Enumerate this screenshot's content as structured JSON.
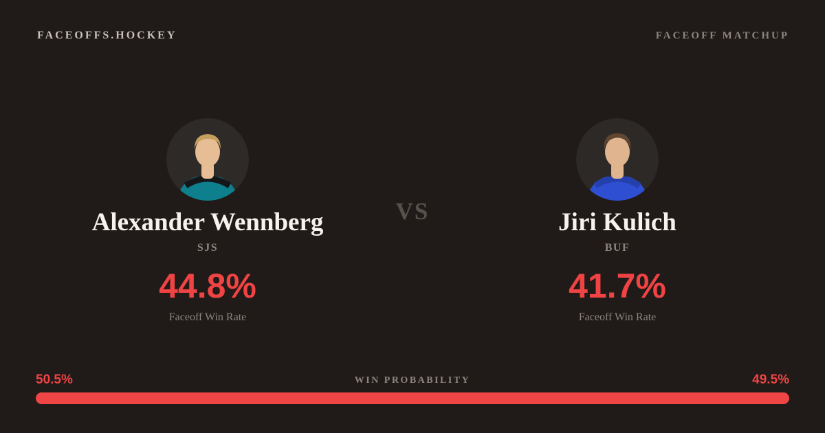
{
  "page": {
    "background": "#201b18",
    "accent_red": "#ef4344",
    "text_white": "#f6f3ef",
    "text_gray": "#8c867f"
  },
  "header": {
    "brand": "FACEOFFS.HOCKEY",
    "label": "FACEOFF MATCHUP"
  },
  "matchup": {
    "vs": "VS",
    "players": [
      {
        "name": "Alexander Wennberg",
        "team": "SJS",
        "win_rate": "44.8%",
        "stat_label": "Faceoff Win Rate",
        "avatar": {
          "bg": "#2d2a27",
          "skin": "#e6bd95",
          "hair": "#c69f5e",
          "jersey": "#0e7f8c",
          "yoke": "#14161a"
        }
      },
      {
        "name": "Jiri Kulich",
        "team": "BUF",
        "win_rate": "41.7%",
        "stat_label": "Faceoff Win Rate",
        "avatar": {
          "bg": "#2c2926",
          "skin": "#e0b48e",
          "hair": "#5e4632",
          "jersey": "#2f4fd2",
          "yoke": "#2440ad"
        }
      }
    ]
  },
  "probability": {
    "title": "WIN PROBABILITY",
    "left_label": "50.5%",
    "right_label": "49.5%",
    "left_value": 50.5,
    "right_value": 49.5,
    "bar_color": "#ef4545"
  }
}
